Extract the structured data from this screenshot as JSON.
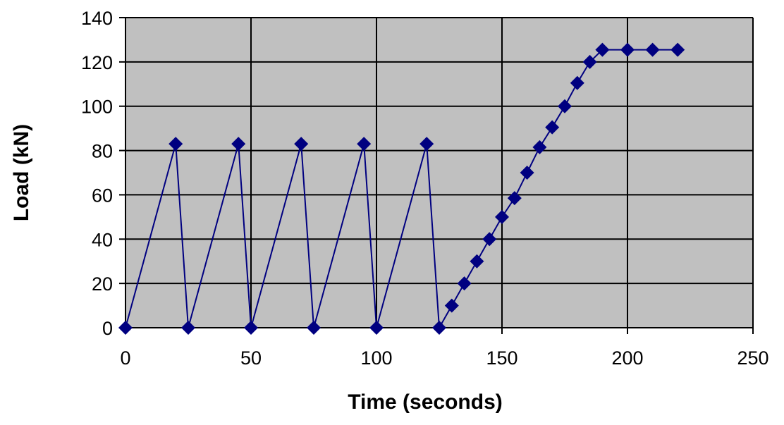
{
  "chart_data": {
    "type": "line",
    "title": "",
    "xlabel": "Time (seconds)",
    "ylabel": "Load (kN)",
    "xlim": [
      0,
      250
    ],
    "ylim": [
      0,
      140
    ],
    "x_ticks": [
      0,
      50,
      100,
      150,
      200,
      250
    ],
    "y_ticks": [
      0,
      20,
      40,
      60,
      80,
      100,
      120,
      140
    ],
    "grid": true,
    "legend": "none",
    "colors": {
      "plot_background": "#c0c0c0",
      "series": "#000080",
      "grid": "#000000"
    },
    "series": [
      {
        "marker": "diamond",
        "points": [
          [
            0,
            0
          ],
          [
            20,
            83
          ],
          [
            25,
            0
          ],
          [
            45,
            83
          ],
          [
            50,
            0
          ],
          [
            70,
            83
          ],
          [
            75,
            0
          ],
          [
            95,
            83
          ],
          [
            100,
            0
          ],
          [
            120,
            83
          ],
          [
            125,
            0
          ],
          [
            130,
            10
          ],
          [
            135,
            20
          ],
          [
            140,
            30
          ],
          [
            145,
            40
          ],
          [
            150,
            50
          ],
          [
            155,
            58.5
          ],
          [
            160,
            70
          ],
          [
            165,
            81.5
          ],
          [
            170,
            90.5
          ],
          [
            175,
            100
          ],
          [
            180,
            110.5
          ],
          [
            185,
            120
          ],
          [
            190,
            125.5
          ],
          [
            200,
            125.5
          ],
          [
            210,
            125.5
          ],
          [
            220,
            125.5
          ]
        ]
      }
    ]
  }
}
